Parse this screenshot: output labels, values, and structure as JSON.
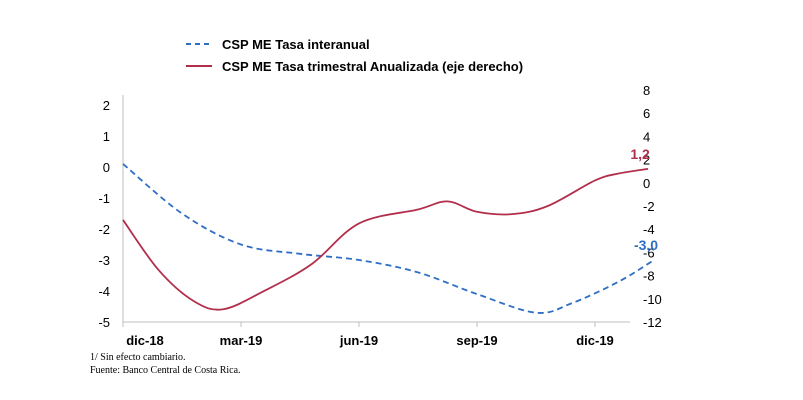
{
  "chart_data": {
    "type": "line",
    "x_categories": [
      "dic-18",
      "mar-19",
      "jun-19",
      "sep-19",
      "dic-19"
    ],
    "series": [
      {
        "name": "CSP ME Tasa interanual",
        "axis": "left",
        "style": "dashed",
        "color": "#2e6fc4",
        "points": [
          [
            0.0,
            0.1
          ],
          [
            0.5,
            -1.5
          ],
          [
            1.0,
            -2.5
          ],
          [
            1.5,
            -2.8
          ],
          [
            2.0,
            -3.0
          ],
          [
            2.5,
            -3.4
          ],
          [
            3.0,
            -4.1
          ],
          [
            3.5,
            -4.7
          ],
          [
            3.8,
            -4.4
          ],
          [
            4.2,
            -3.7
          ],
          [
            4.5,
            -3.0
          ]
        ],
        "end_label": "-3,0"
      },
      {
        "name": "CSP ME Tasa trimestral Anualizada (eje derecho)",
        "axis": "right",
        "style": "solid",
        "color": "#b22f4c",
        "points": [
          [
            0.0,
            -3.2
          ],
          [
            0.3,
            -7.5
          ],
          [
            0.6,
            -10.2
          ],
          [
            0.85,
            -10.9
          ],
          [
            1.2,
            -9.3
          ],
          [
            1.6,
            -7.0
          ],
          [
            2.0,
            -3.5
          ],
          [
            2.5,
            -2.3
          ],
          [
            2.75,
            -1.6
          ],
          [
            3.0,
            -2.5
          ],
          [
            3.3,
            -2.7
          ],
          [
            3.6,
            -2.0
          ],
          [
            4.0,
            0.2
          ],
          [
            4.2,
            0.8
          ],
          [
            4.45,
            1.2
          ]
        ],
        "end_label": "1,2"
      }
    ],
    "y_left": {
      "ticks": [
        "2",
        "1",
        "0",
        "-1",
        "-2",
        "-3",
        "-4",
        "-5"
      ],
      "ylim": [
        -5,
        2
      ]
    },
    "y_right": {
      "ticks": [
        "8",
        "6",
        "4",
        "2",
        "0",
        "-2",
        "-4",
        "-6",
        "-8",
        "-10",
        "-12"
      ],
      "ylim": [
        -12,
        8
      ]
    },
    "notes": [
      "1/ Sin efecto cambiario.",
      "Fuente: Banco Central de Costa Rica."
    ]
  }
}
